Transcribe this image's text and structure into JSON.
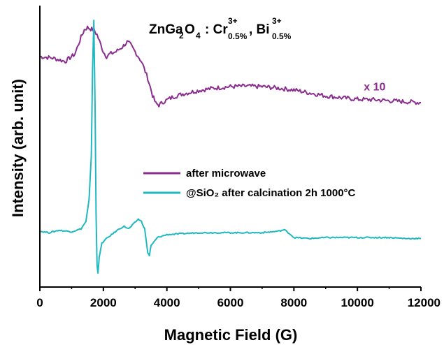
{
  "colors": {
    "series1": "#8a2d8f",
    "series2": "#20b8bf",
    "axis": "#000000"
  },
  "chart_data": {
    "type": "line",
    "title": {
      "formula": "ZnGa₂O₄ : Cr³⁺₀.₅%, Bi³⁺₀.₅%"
    },
    "xlabel": "Magnetic Field (G)",
    "ylabel": "Intensity (arb. unit)",
    "xlim": [
      0,
      12000
    ],
    "ylim": [
      -1.2,
      4.6
    ],
    "xticks": [
      0,
      2000,
      4000,
      6000,
      8000,
      10000,
      12000
    ],
    "xtick_labels": [
      "0",
      "2000",
      "4000",
      "6000",
      "8000",
      "10000",
      "12000"
    ],
    "legend": {
      "position": "center-right"
    },
    "annotation": {
      "text": "x 10",
      "x": 10200,
      "y": 2.85
    },
    "series": [
      {
        "name": "after microwave",
        "color": "#8a2d8f",
        "x": [
          0,
          400,
          800,
          1100,
          1300,
          1400,
          1500,
          1600,
          1700,
          1800,
          2000,
          2100,
          2200,
          2400,
          2600,
          2750,
          2850,
          3000,
          3200,
          3400,
          3550,
          3650,
          3750,
          3900,
          4200,
          4500,
          5000,
          5500,
          6000,
          6500,
          7000,
          7500,
          8000,
          8500,
          9000,
          9500,
          10000,
          10500,
          11000,
          11500,
          12000
        ],
        "y": [
          3.55,
          3.52,
          3.45,
          3.6,
          3.95,
          4.1,
          4.15,
          4.12,
          4.1,
          4.0,
          3.65,
          3.55,
          3.6,
          3.65,
          3.75,
          3.85,
          3.8,
          3.65,
          3.45,
          3.1,
          2.75,
          2.58,
          2.55,
          2.62,
          2.72,
          2.78,
          2.85,
          2.9,
          2.93,
          2.94,
          2.93,
          2.9,
          2.86,
          2.8,
          2.74,
          2.7,
          2.67,
          2.66,
          2.64,
          2.62,
          2.6
        ]
      },
      {
        "name": "@SiO₂ after calcination 2h 1000°C",
        "color": "#20b8bf",
        "x": [
          0,
          300,
          600,
          1000,
          1300,
          1450,
          1550,
          1620,
          1660,
          1700,
          1740,
          1770,
          1800,
          1830,
          1870,
          1950,
          2100,
          2300,
          2500,
          2650,
          2800,
          2950,
          3100,
          3200,
          3300,
          3350,
          3400,
          3450,
          3500,
          3700,
          4000,
          4500,
          5000,
          5500,
          6000,
          6500,
          7000,
          7500,
          7700,
          7900,
          8000,
          8500,
          9000,
          9500,
          10000,
          10500,
          11000,
          11500,
          12000
        ],
        "y": [
          -0.05,
          -0.08,
          -0.03,
          -0.06,
          0.0,
          0.15,
          0.6,
          1.5,
          3.3,
          4.3,
          2.5,
          0.3,
          -0.75,
          -0.9,
          -0.6,
          -0.3,
          -0.2,
          -0.1,
          0.0,
          0.05,
          0.0,
          0.1,
          0.2,
          0.15,
          0.0,
          -0.25,
          -0.5,
          -0.55,
          -0.35,
          -0.18,
          -0.12,
          -0.1,
          -0.08,
          -0.08,
          -0.08,
          -0.08,
          -0.08,
          -0.05,
          -0.02,
          -0.12,
          -0.18,
          -0.2,
          -0.18,
          -0.18,
          -0.18,
          -0.18,
          -0.18,
          -0.2,
          -0.2
        ]
      }
    ]
  }
}
